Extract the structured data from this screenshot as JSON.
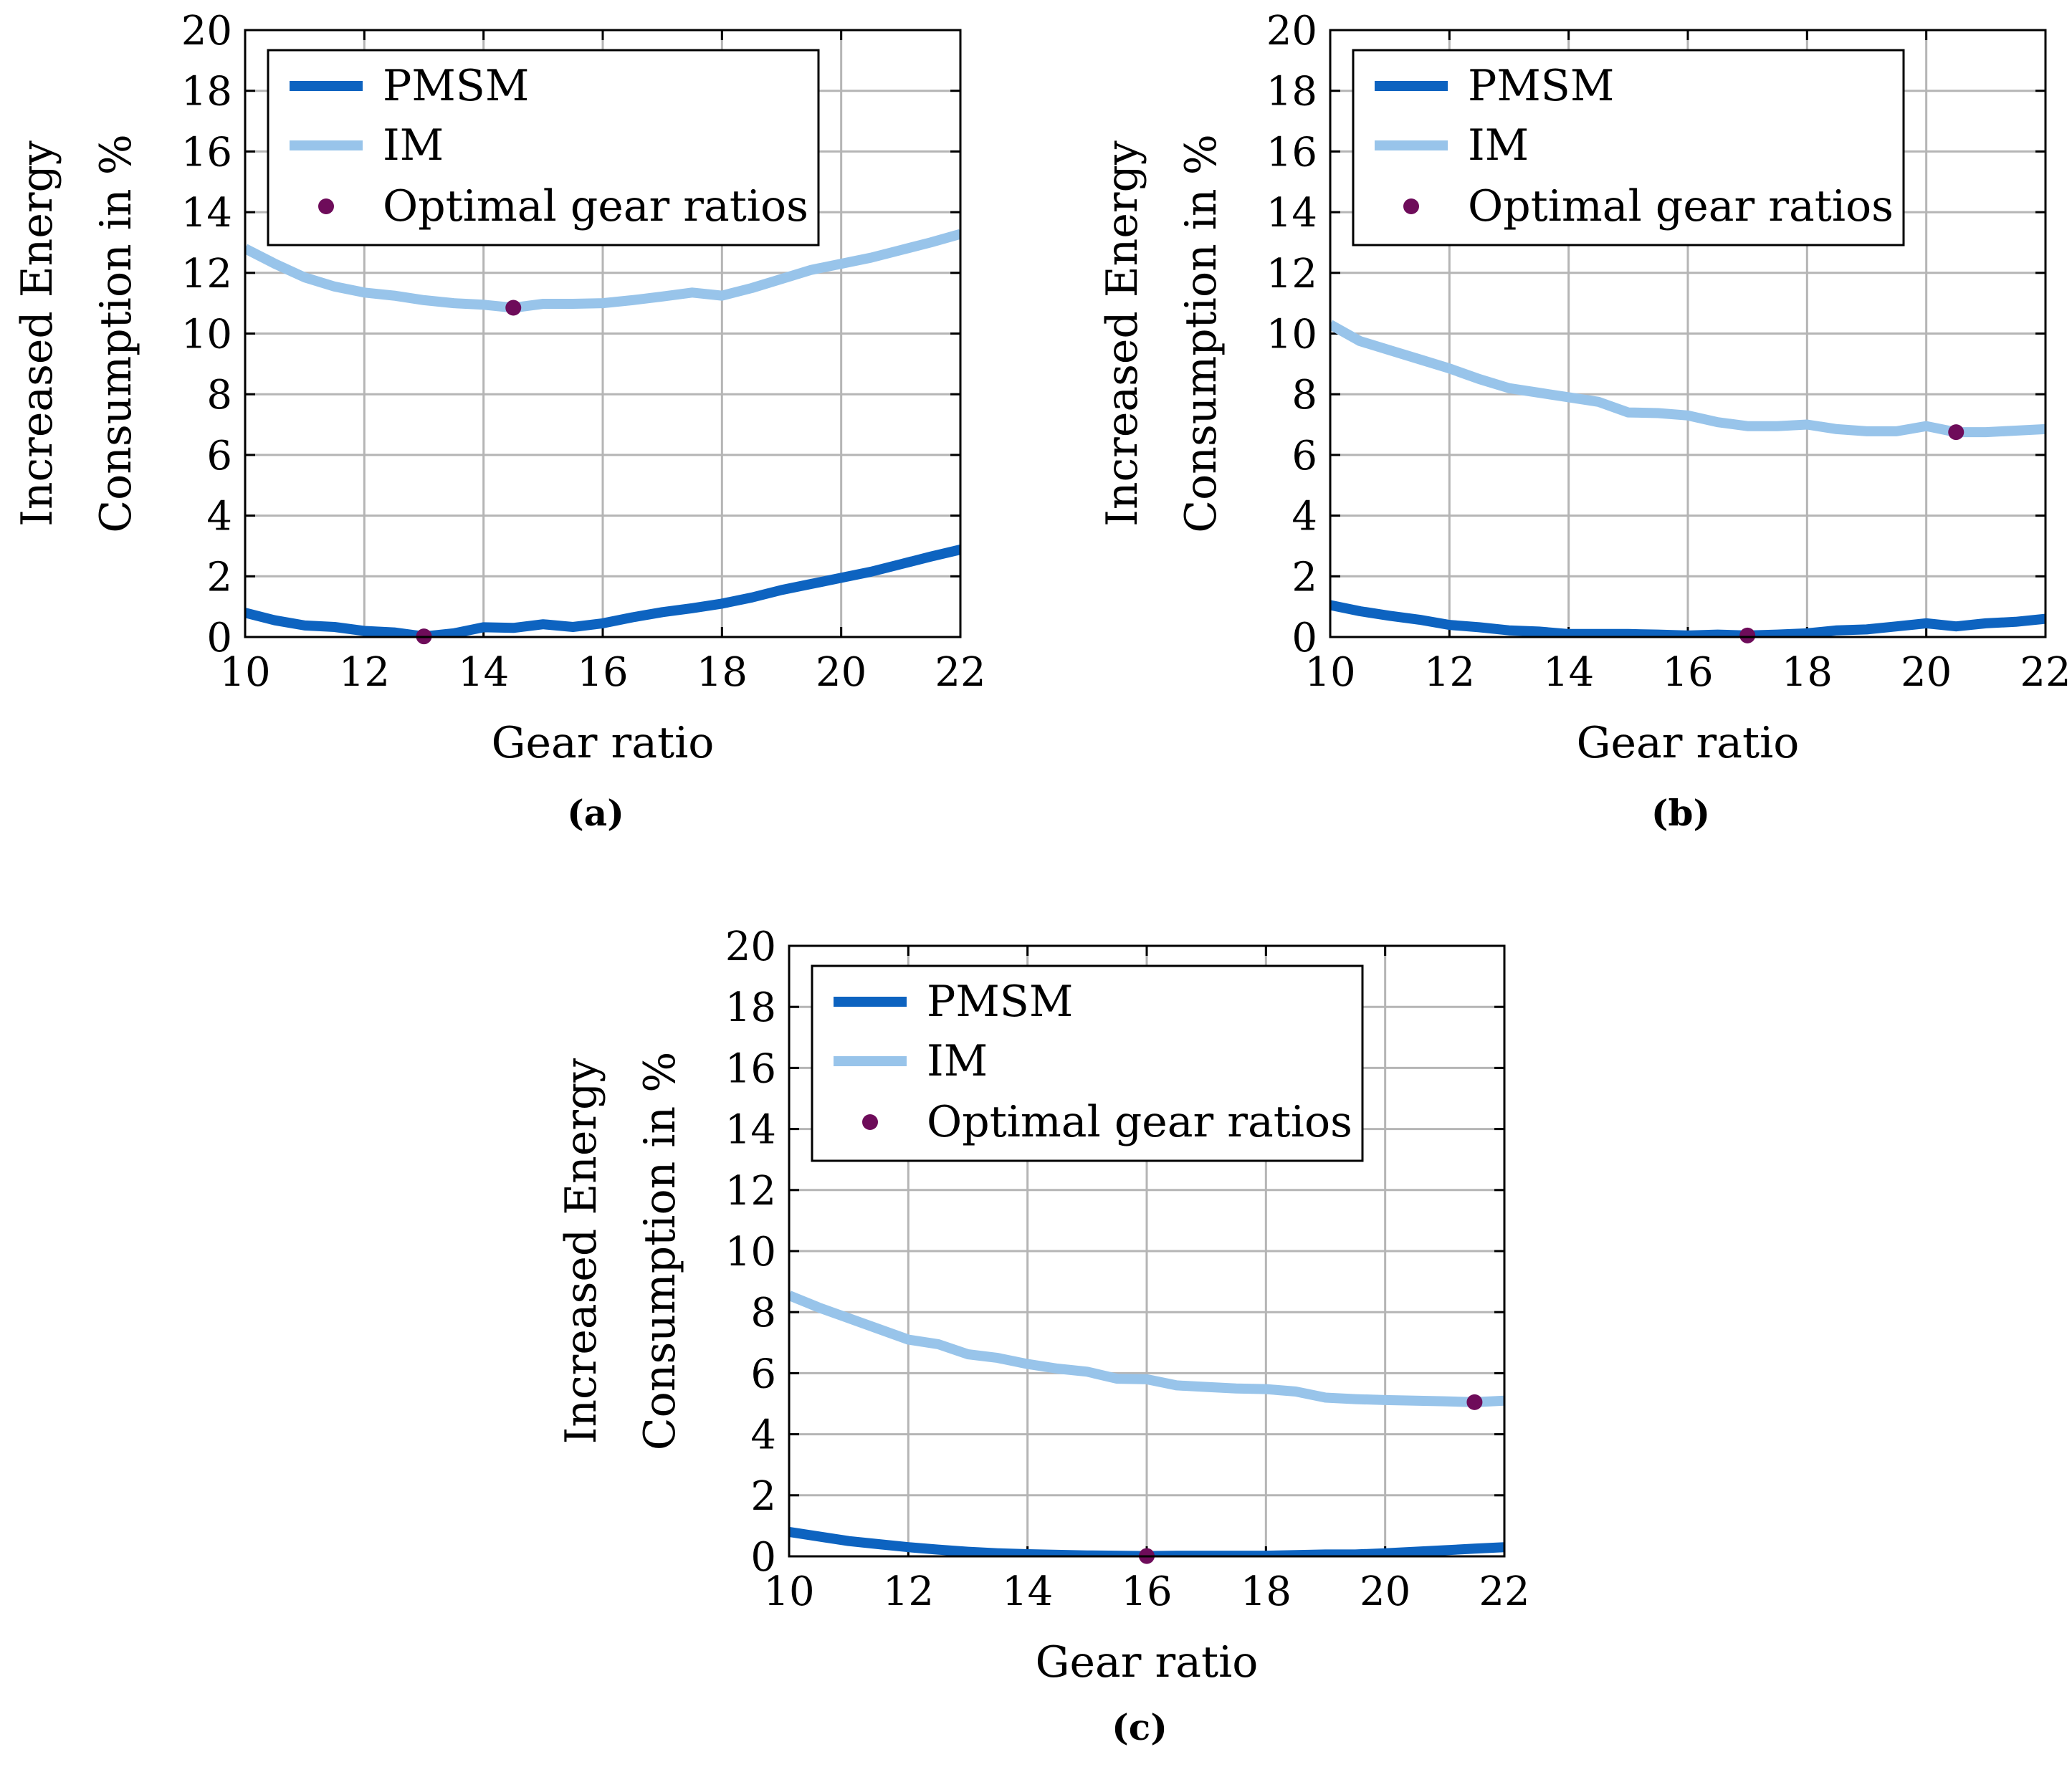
{
  "colors": {
    "pmsm": "#0d63c0",
    "im": "#98c4ea",
    "optimal": "#6e0c5a",
    "grid": "#b5b5b5",
    "frame": "#000000"
  },
  "chart_data": [
    {
      "type": "line",
      "caption": "(a)",
      "xlabel": "Gear ratio",
      "ylabel_line1": "Increased Energy",
      "ylabel_line2": "Consumption in %",
      "xlim": [
        10,
        22
      ],
      "ylim": [
        0,
        20
      ],
      "xticks": [
        10,
        12,
        14,
        16,
        18,
        20,
        22
      ],
      "yticks": [
        0,
        2,
        4,
        6,
        8,
        10,
        12,
        14,
        16,
        18,
        20
      ],
      "grid": true,
      "legend_position": "top-left",
      "legend": [
        "PMSM",
        "IM",
        "Optimal gear ratios"
      ],
      "x": [
        10,
        10.5,
        11,
        11.5,
        12,
        12.5,
        13,
        13.5,
        14,
        14.5,
        15,
        15.5,
        16,
        16.5,
        17,
        17.5,
        18,
        18.5,
        19,
        19.5,
        20,
        20.5,
        21,
        21.5,
        22
      ],
      "series": [
        {
          "name": "PMSM",
          "values": [
            0.8,
            0.55,
            0.38,
            0.33,
            0.2,
            0.15,
            0.02,
            0.12,
            0.32,
            0.3,
            0.42,
            0.33,
            0.45,
            0.65,
            0.82,
            0.95,
            1.1,
            1.3,
            1.55,
            1.75,
            1.95,
            2.15,
            2.4,
            2.65,
            2.88
          ]
        },
        {
          "name": "IM",
          "values": [
            12.8,
            12.3,
            11.85,
            11.55,
            11.35,
            11.25,
            11.1,
            11.0,
            10.95,
            10.85,
            10.98,
            10.98,
            11.0,
            11.1,
            11.22,
            11.35,
            11.25,
            11.5,
            11.8,
            12.1,
            12.3,
            12.5,
            12.75,
            13.0,
            13.28
          ]
        }
      ],
      "optimal_points": [
        {
          "x": 13,
          "y": 0.02
        },
        {
          "x": 14.5,
          "y": 10.85
        }
      ]
    },
    {
      "type": "line",
      "caption": "(b)",
      "xlabel": "Gear ratio",
      "ylabel_line1": "Increased Energy",
      "ylabel_line2": "Consumption in %",
      "xlim": [
        10,
        22
      ],
      "ylim": [
        0,
        20
      ],
      "xticks": [
        10,
        12,
        14,
        16,
        18,
        20,
        22
      ],
      "yticks": [
        0,
        2,
        4,
        6,
        8,
        10,
        12,
        14,
        16,
        18,
        20
      ],
      "grid": true,
      "legend_position": "top-left",
      "legend": [
        "PMSM",
        "IM",
        "Optimal gear ratios"
      ],
      "x": [
        10,
        10.5,
        11,
        11.5,
        12,
        12.5,
        13,
        13.5,
        14,
        14.5,
        15,
        15.5,
        16,
        16.5,
        17,
        17.5,
        18,
        18.5,
        19,
        19.5,
        20,
        20.5,
        21,
        21.5,
        22
      ],
      "series": [
        {
          "name": "PMSM",
          "values": [
            1.05,
            0.85,
            0.7,
            0.57,
            0.4,
            0.32,
            0.22,
            0.18,
            0.1,
            0.1,
            0.1,
            0.08,
            0.05,
            0.08,
            0.05,
            0.08,
            0.12,
            0.22,
            0.25,
            0.35,
            0.45,
            0.35,
            0.45,
            0.5,
            0.6
          ]
        },
        {
          "name": "IM",
          "values": [
            10.3,
            9.75,
            9.45,
            9.15,
            8.85,
            8.5,
            8.2,
            8.05,
            7.9,
            7.75,
            7.4,
            7.38,
            7.3,
            7.08,
            6.95,
            6.95,
            7.0,
            6.85,
            6.78,
            6.78,
            6.95,
            6.75,
            6.75,
            6.8,
            6.85
          ]
        }
      ],
      "optimal_points": [
        {
          "x": 17,
          "y": 0.05
        },
        {
          "x": 20.5,
          "y": 6.75
        }
      ]
    },
    {
      "type": "line",
      "caption": "(c)",
      "xlabel": "Gear ratio",
      "ylabel_line1": "Increased Energy",
      "ylabel_line2": "Consumption in %",
      "xlim": [
        10,
        22
      ],
      "ylim": [
        0,
        20
      ],
      "xticks": [
        10,
        12,
        14,
        16,
        18,
        20,
        22
      ],
      "yticks": [
        0,
        2,
        4,
        6,
        8,
        10,
        12,
        14,
        16,
        18,
        20
      ],
      "grid": true,
      "legend_position": "top-left",
      "legend": [
        "PMSM",
        "IM",
        "Optimal gear ratios"
      ],
      "x": [
        10,
        10.5,
        11,
        11.5,
        12,
        12.5,
        13,
        13.5,
        14,
        14.5,
        15,
        15.5,
        16,
        16.5,
        17,
        17.5,
        18,
        18.5,
        19,
        19.5,
        20,
        20.5,
        21,
        21.5,
        22
      ],
      "series": [
        {
          "name": "PMSM",
          "values": [
            0.8,
            0.65,
            0.5,
            0.4,
            0.3,
            0.22,
            0.15,
            0.1,
            0.07,
            0.05,
            0.03,
            0.02,
            0.01,
            0.02,
            0.02,
            0.02,
            0.02,
            0.04,
            0.06,
            0.06,
            0.1,
            0.15,
            0.2,
            0.25,
            0.3
          ]
        },
        {
          "name": "IM",
          "values": [
            8.55,
            8.15,
            7.8,
            7.45,
            7.1,
            6.95,
            6.62,
            6.5,
            6.3,
            6.15,
            6.05,
            5.82,
            5.8,
            5.6,
            5.55,
            5.5,
            5.48,
            5.4,
            5.2,
            5.15,
            5.12,
            5.1,
            5.08,
            5.05,
            5.1
          ]
        }
      ],
      "optimal_points": [
        {
          "x": 16,
          "y": 0.01
        },
        {
          "x": 21.5,
          "y": 5.05
        }
      ]
    }
  ]
}
